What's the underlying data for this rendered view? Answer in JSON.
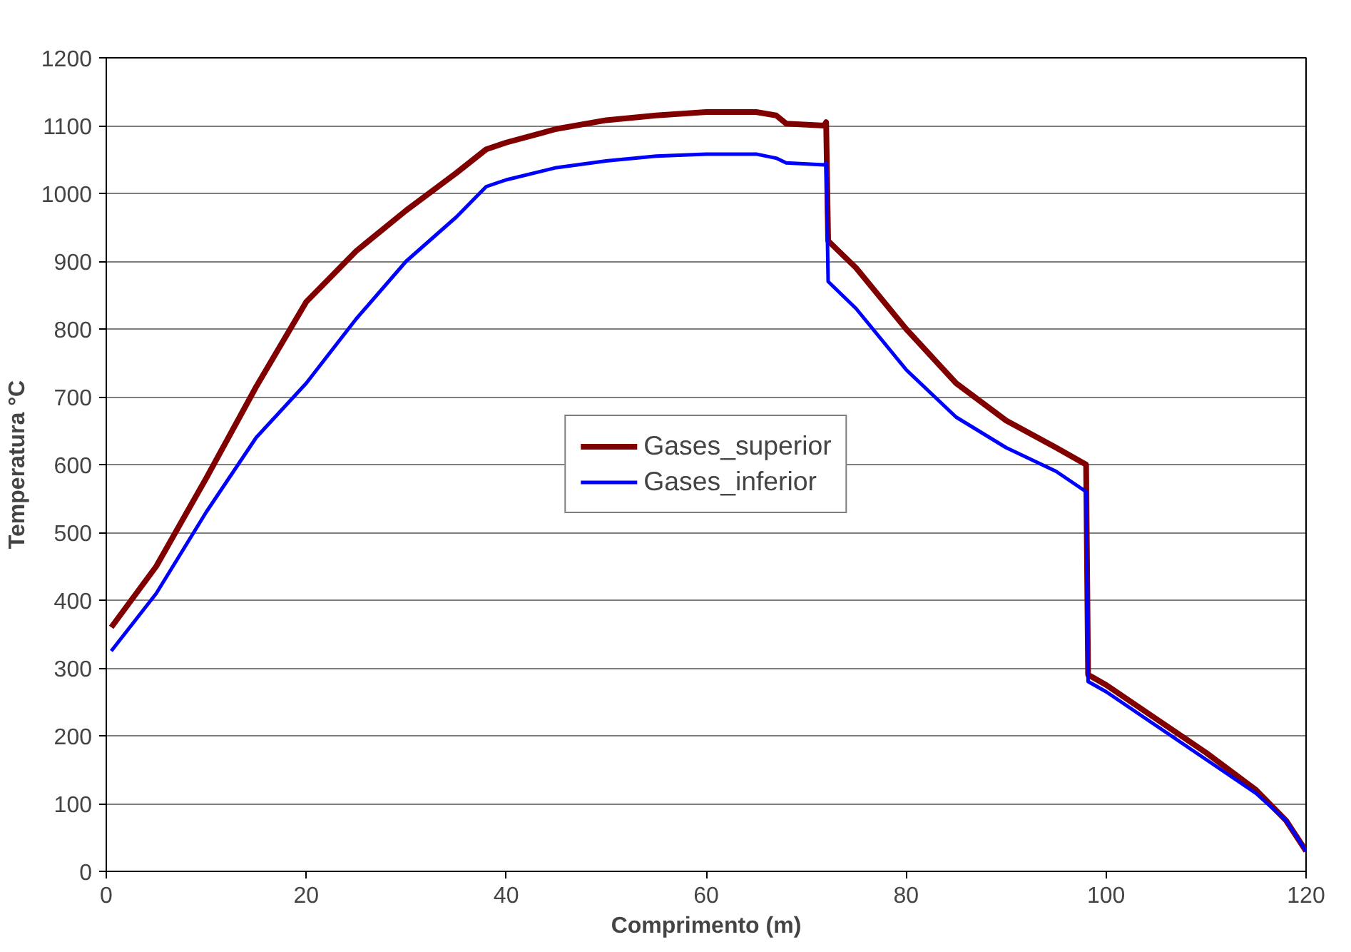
{
  "chart_data": {
    "type": "line",
    "xlabel": "Comprimento (m)",
    "ylabel": "Temperatura °C",
    "xlim": [
      0,
      120
    ],
    "xticks": [
      0,
      20,
      40,
      60,
      80,
      100,
      120
    ],
    "ylim": [
      0,
      1200
    ],
    "yticks": [
      0,
      100,
      200,
      300,
      400,
      500,
      600,
      700,
      800,
      900,
      1000,
      1100,
      1200
    ],
    "grid": "y",
    "legend": "center",
    "marker": "none",
    "line_style": "solid",
    "series": [
      {
        "name": "Gases_superior",
        "color": "#800000",
        "x": [
          0.5,
          5,
          10,
          15,
          20,
          25,
          30,
          35,
          38,
          40,
          45,
          50,
          55,
          60,
          65,
          67,
          68,
          71.8,
          72,
          72.2,
          75,
          80,
          85,
          90,
          95,
          98,
          98.2,
          100,
          105,
          110,
          115,
          118,
          120
        ],
        "values": [
          360,
          450,
          580,
          715,
          840,
          915,
          975,
          1030,
          1065,
          1075,
          1095,
          1108,
          1115,
          1120,
          1120,
          1115,
          1103,
          1100,
          1105,
          930,
          890,
          800,
          720,
          665,
          625,
          600,
          290,
          275,
          225,
          175,
          120,
          75,
          30
        ]
      },
      {
        "name": "Gases_inferior",
        "color": "#0000ff",
        "x": [
          0.5,
          5,
          10,
          15,
          20,
          25,
          30,
          35,
          38,
          40,
          45,
          50,
          55,
          60,
          65,
          67,
          68,
          71.8,
          72,
          72.2,
          75,
          80,
          85,
          90,
          95,
          98,
          98.2,
          100,
          105,
          110,
          115,
          118,
          120
        ],
        "values": [
          325,
          410,
          530,
          640,
          720,
          815,
          900,
          965,
          1010,
          1020,
          1038,
          1048,
          1055,
          1058,
          1058,
          1052,
          1045,
          1042,
          1045,
          870,
          830,
          740,
          670,
          625,
          590,
          560,
          280,
          265,
          215,
          165,
          115,
          75,
          30
        ]
      }
    ]
  }
}
